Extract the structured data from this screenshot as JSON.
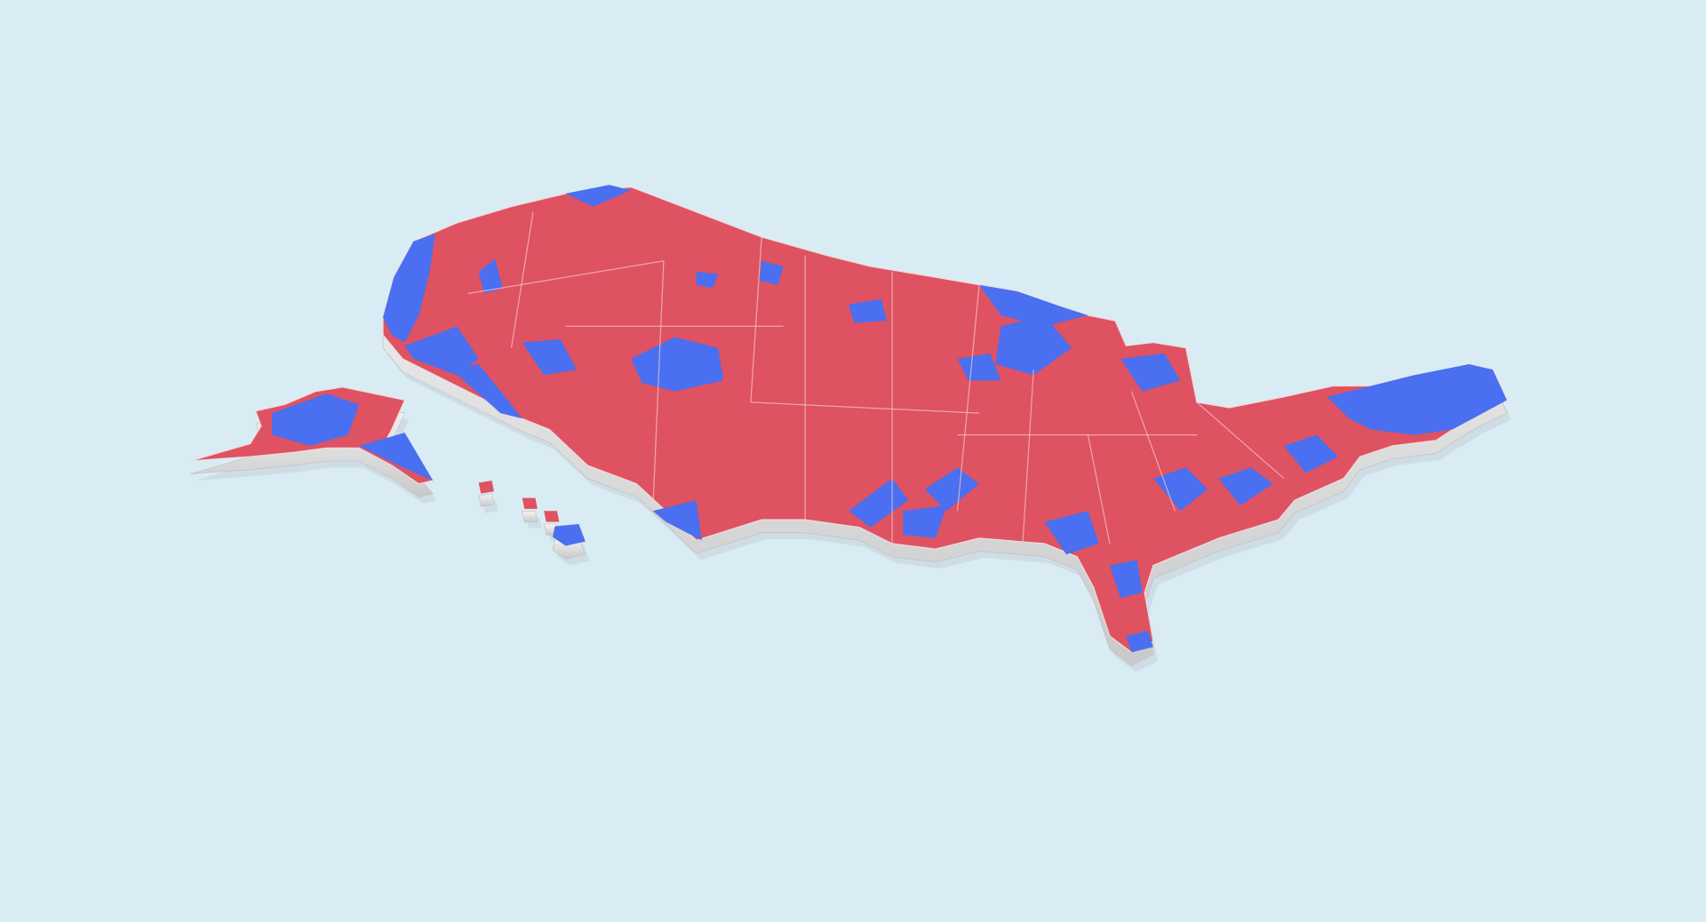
{
  "background_color": "#d9ecf4",
  "map": {
    "colors": {
      "republican": "#df5261",
      "democrat": "#4a6ff0",
      "border": "#f3c9cd",
      "extrusion_side": "#dcdcdc",
      "extrusion_shadow": "#b9c4c9"
    }
  }
}
